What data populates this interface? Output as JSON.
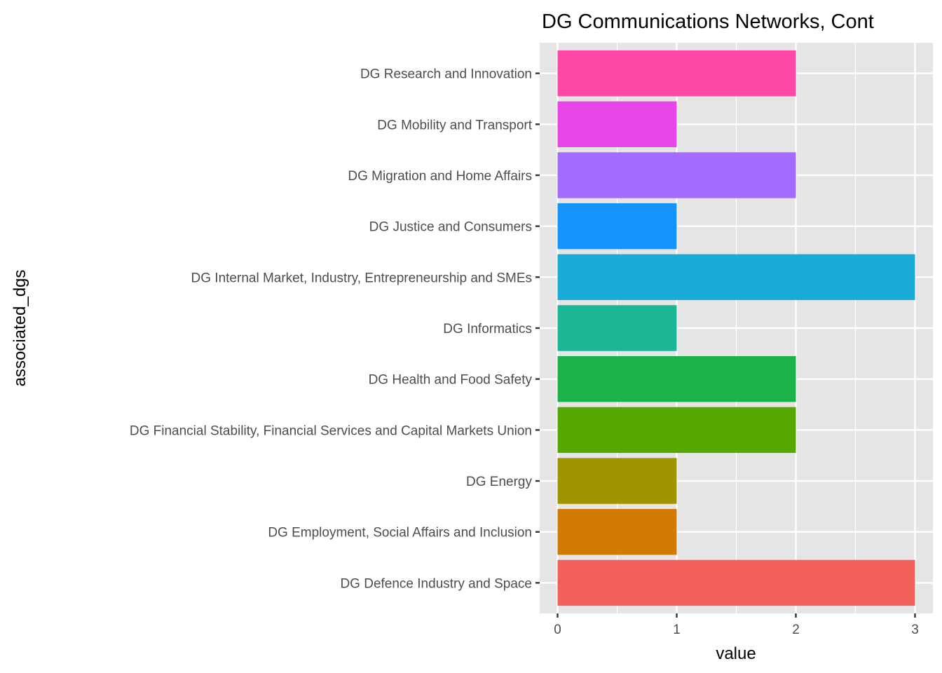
{
  "chart_data": {
    "type": "bar",
    "orientation": "horizontal",
    "title": "DG Communications Networks, Cont",
    "xlabel": "value",
    "ylabel": "associated_dgs",
    "xlim": [
      -0.15,
      3.15
    ],
    "xticks": [
      0,
      1,
      2,
      3
    ],
    "grid": true,
    "legend": "none",
    "categories": [
      "DG Defence Industry and Space",
      "DG Employment, Social Affairs and Inclusion",
      "DG Energy",
      "DG Financial Stability, Financial Services and Capital Markets Union",
      "DG Health and Food Safety",
      "DG Informatics",
      "DG Internal Market, Industry, Entrepreneurship and SMEs",
      "DG Justice and Consumers",
      "DG Migration and Home Affairs",
      "DG Mobility and Transport",
      "DG Research and Innovation"
    ],
    "values": [
      3,
      1,
      1,
      2,
      2,
      1,
      3,
      1,
      2,
      1,
      2
    ],
    "colors": [
      "#F2605C",
      "#D17B05",
      "#A09400",
      "#55A800",
      "#1BB24A",
      "#1AB696",
      "#19ACD8",
      "#1593FF",
      "#A36BFF",
      "#E846E8",
      "#FF47A6"
    ]
  }
}
